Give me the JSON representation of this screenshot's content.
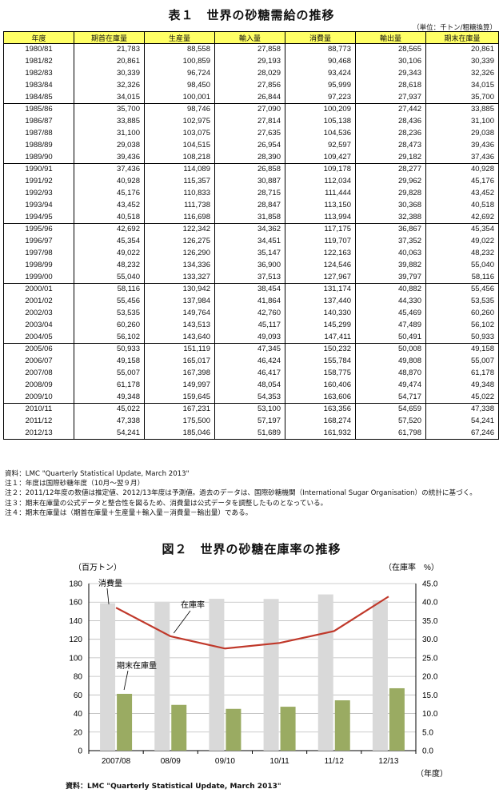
{
  "table": {
    "title": "表１　世界の砂糖需給の推移",
    "unit": "（単位：千トン/粗糖換算）",
    "headers": [
      "年度",
      "期首在庫量",
      "生産量",
      "輸入量",
      "消費量",
      "輸出量",
      "期末在庫量"
    ],
    "rows": [
      [
        "1980/81",
        "21,783",
        "88,558",
        "27,858",
        "88,773",
        "28,565",
        "20,861"
      ],
      [
        "1981/82",
        "20,861",
        "100,859",
        "29,193",
        "90,468",
        "30,106",
        "30,339"
      ],
      [
        "1982/83",
        "30,339",
        "96,724",
        "28,029",
        "93,424",
        "29,343",
        "32,326"
      ],
      [
        "1983/84",
        "32,326",
        "98,450",
        "27,856",
        "95,999",
        "28,618",
        "34,015"
      ],
      [
        "1984/85",
        "34,015",
        "100,001",
        "26,844",
        "97,223",
        "27,937",
        "35,700"
      ],
      [
        "1985/86",
        "35,700",
        "98,746",
        "27,090",
        "100,209",
        "27,442",
        "33,885"
      ],
      [
        "1986/87",
        "33,885",
        "102,975",
        "27,814",
        "105,138",
        "28,436",
        "31,100"
      ],
      [
        "1987/88",
        "31,100",
        "103,075",
        "27,635",
        "104,536",
        "28,236",
        "29,038"
      ],
      [
        "1988/89",
        "29,038",
        "104,515",
        "26,954",
        "92,597",
        "28,473",
        "39,436"
      ],
      [
        "1989/90",
        "39,436",
        "108,218",
        "28,390",
        "109,427",
        "29,182",
        "37,436"
      ],
      [
        "1990/91",
        "37,436",
        "114,089",
        "26,858",
        "109,178",
        "28,277",
        "40,928"
      ],
      [
        "1991/92",
        "40,928",
        "115,357",
        "30,887",
        "112,034",
        "29,962",
        "45,176"
      ],
      [
        "1992/93",
        "45,176",
        "110,833",
        "28,715",
        "111,444",
        "29,828",
        "43,452"
      ],
      [
        "1993/94",
        "43,452",
        "111,738",
        "28,847",
        "113,150",
        "30,368",
        "40,518"
      ],
      [
        "1994/95",
        "40,518",
        "116,698",
        "31,858",
        "113,994",
        "32,388",
        "42,692"
      ],
      [
        "1995/96",
        "42,692",
        "122,342",
        "34,362",
        "117,175",
        "36,867",
        "45,354"
      ],
      [
        "1996/97",
        "45,354",
        "126,275",
        "34,451",
        "119,707",
        "37,352",
        "49,022"
      ],
      [
        "1997/98",
        "49,022",
        "126,290",
        "35,147",
        "122,163",
        "40,063",
        "48,232"
      ],
      [
        "1998/99",
        "48,232",
        "134,336",
        "36,900",
        "124,546",
        "39,882",
        "55,040"
      ],
      [
        "1999/00",
        "55,040",
        "133,327",
        "37,513",
        "127,967",
        "39,797",
        "58,116"
      ],
      [
        "2000/01",
        "58,116",
        "130,942",
        "38,454",
        "131,174",
        "40,882",
        "55,456"
      ],
      [
        "2001/02",
        "55,456",
        "137,984",
        "41,864",
        "137,440",
        "44,330",
        "53,535"
      ],
      [
        "2002/03",
        "53,535",
        "149,764",
        "42,760",
        "140,330",
        "45,469",
        "60,260"
      ],
      [
        "2003/04",
        "60,260",
        "143,513",
        "45,117",
        "145,299",
        "47,489",
        "56,102"
      ],
      [
        "2004/05",
        "56,102",
        "143,640",
        "49,093",
        "147,411",
        "50,491",
        "50,933"
      ],
      [
        "2005/06",
        "50,933",
        "151,119",
        "47,345",
        "150,232",
        "50,008",
        "49,158"
      ],
      [
        "2006/07",
        "49,158",
        "165,017",
        "46,424",
        "155,784",
        "49,808",
        "55,007"
      ],
      [
        "2007/08",
        "55,007",
        "167,398",
        "46,417",
        "158,775",
        "48,870",
        "61,178"
      ],
      [
        "2008/09",
        "61,178",
        "149,997",
        "48,054",
        "160,406",
        "49,474",
        "49,348"
      ],
      [
        "2009/10",
        "49,348",
        "159,645",
        "54,353",
        "163,606",
        "54,717",
        "45,022"
      ],
      [
        "2010/11",
        "45,022",
        "167,231",
        "53,100",
        "163,356",
        "54,659",
        "47,338"
      ],
      [
        "2011/12",
        "47,338",
        "175,500",
        "57,197",
        "168,274",
        "57,520",
        "54,241"
      ],
      [
        "2012/13",
        "54,241",
        "185,046",
        "51,689",
        "161,932",
        "61,798",
        "67,246"
      ]
    ]
  },
  "notes": [
    "資料：LMC \"Quarterly Statistical Update, March 2013\"",
    "注１：年度は国際砂糖年度（10月～翌９月）",
    "注２：2011/12年度の数値は推定値、2012/13年度は予測値。過去のデータは、国際砂糖機関（International Sugar Organisation）の統計に基づく。",
    "注３：期末在庫量の公式データと整合性を図るため、消費量は公式データを調整したものとなっている。",
    "注４：期末在庫量は（期首在庫量＋生産量＋輸入量－消費量－輸出量）である。"
  ],
  "figure": {
    "title": "図２　世界の砂糖在庫率の推移",
    "source": "資料：LMC \"Quarterly Statistical Update, March 2013\""
  },
  "chart_data": {
    "type": "bar",
    "categories": [
      "2007/08",
      "08/09",
      "09/10",
      "10/11",
      "11/12",
      "12/13"
    ],
    "series": [
      {
        "name": "消費量",
        "type": "bar",
        "axis": "left",
        "color": "#d9d9d9",
        "values": [
          158.8,
          160.4,
          163.6,
          163.4,
          168.3,
          161.9
        ]
      },
      {
        "name": "期末在庫量",
        "type": "bar",
        "axis": "left",
        "color": "#9aab62",
        "values": [
          61.2,
          49.3,
          45.0,
          47.3,
          54.2,
          67.2
        ]
      },
      {
        "name": "在庫率",
        "type": "line",
        "axis": "right",
        "color": "#c0392b",
        "values": [
          38.5,
          30.8,
          27.5,
          29.0,
          32.2,
          41.5
        ]
      }
    ],
    "ylabel_left": "（百万トン）",
    "ylabel_right": "（在庫率　%）",
    "xlabel": "（年度）",
    "ylim_left": [
      0,
      180
    ],
    "yticks_left": [
      "0",
      "20",
      "40",
      "60",
      "80",
      "100",
      "120",
      "140",
      "160",
      "180"
    ],
    "ylim_right": [
      0,
      45
    ],
    "yticks_right": [
      "0.0",
      "5.0",
      "10.0",
      "15.0",
      "20.0",
      "25.0",
      "30.0",
      "35.0",
      "40.0",
      "45.0"
    ],
    "grid": true
  }
}
